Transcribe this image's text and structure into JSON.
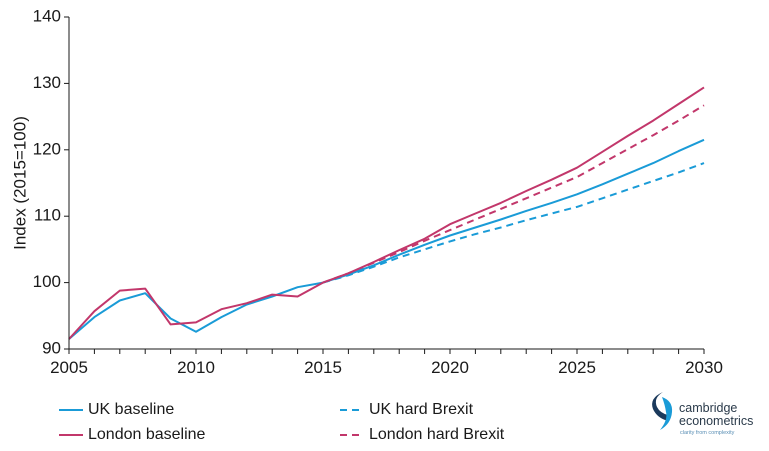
{
  "chart_data": {
    "type": "line",
    "title": "",
    "xlabel": "",
    "ylabel": "Index (2015=100)",
    "xlim": [
      2005,
      2030
    ],
    "ylim": [
      90,
      140
    ],
    "xticks": [
      "2005",
      "2010",
      "2015",
      "2020",
      "2025",
      "2030"
    ],
    "yticks": [
      "90",
      "100",
      "110",
      "120",
      "130",
      "140"
    ],
    "x": [
      2005,
      2006,
      2007,
      2008,
      2009,
      2010,
      2011,
      2012,
      2013,
      2014,
      2015,
      2016,
      2017,
      2018,
      2019,
      2020,
      2021,
      2022,
      2023,
      2024,
      2025,
      2026,
      2027,
      2028,
      2029,
      2030
    ],
    "series": [
      {
        "name": "UK baseline",
        "color": "#1a9bd7",
        "style": "solid",
        "values": [
          91.5,
          94.8,
          97.3,
          98.4,
          94.6,
          92.6,
          94.8,
          96.7,
          97.9,
          99.3,
          100.0,
          101.2,
          102.6,
          104.2,
          105.7,
          107.1,
          108.3,
          109.5,
          110.8,
          112.0,
          113.3,
          114.8,
          116.4,
          118.0,
          119.8,
          121.5
        ]
      },
      {
        "name": "London baseline",
        "color": "#c2376b",
        "style": "solid",
        "values": [
          91.5,
          95.7,
          98.8,
          99.1,
          93.7,
          94.0,
          96.0,
          96.9,
          98.2,
          97.9,
          100.0,
          101.4,
          103.1,
          104.9,
          106.6,
          108.8,
          110.4,
          112.0,
          113.8,
          115.5,
          117.3,
          119.7,
          122.1,
          124.4,
          126.9,
          129.4
        ]
      },
      {
        "name": "UK hard Brexit",
        "color": "#1a9bd7",
        "style": "dashed",
        "values": [
          null,
          null,
          null,
          null,
          null,
          null,
          null,
          null,
          null,
          null,
          100.0,
          101.1,
          102.4,
          103.8,
          105.0,
          106.2,
          107.3,
          108.3,
          109.4,
          110.4,
          111.4,
          112.7,
          114.0,
          115.3,
          116.6,
          118.0
        ]
      },
      {
        "name": "London hard Brexit",
        "color": "#c2376b",
        "style": "dashed",
        "values": [
          null,
          null,
          null,
          null,
          null,
          null,
          null,
          null,
          null,
          null,
          100.0,
          101.4,
          103.0,
          104.6,
          106.3,
          107.9,
          109.5,
          111.1,
          112.7,
          114.3,
          115.9,
          118.0,
          120.1,
          122.2,
          124.4,
          126.7
        ]
      }
    ],
    "legend": {
      "position": "bottom",
      "entries": [
        "UK baseline",
        "London baseline",
        "UK hard Brexit",
        "London hard Brexit"
      ]
    },
    "grid": false
  },
  "logo": {
    "name_line1": "cambridge",
    "name_line2": "econometrics",
    "tagline": "clarity from complexity",
    "color_dark": "#1b3a5c",
    "color_light": "#1a9bd7"
  }
}
